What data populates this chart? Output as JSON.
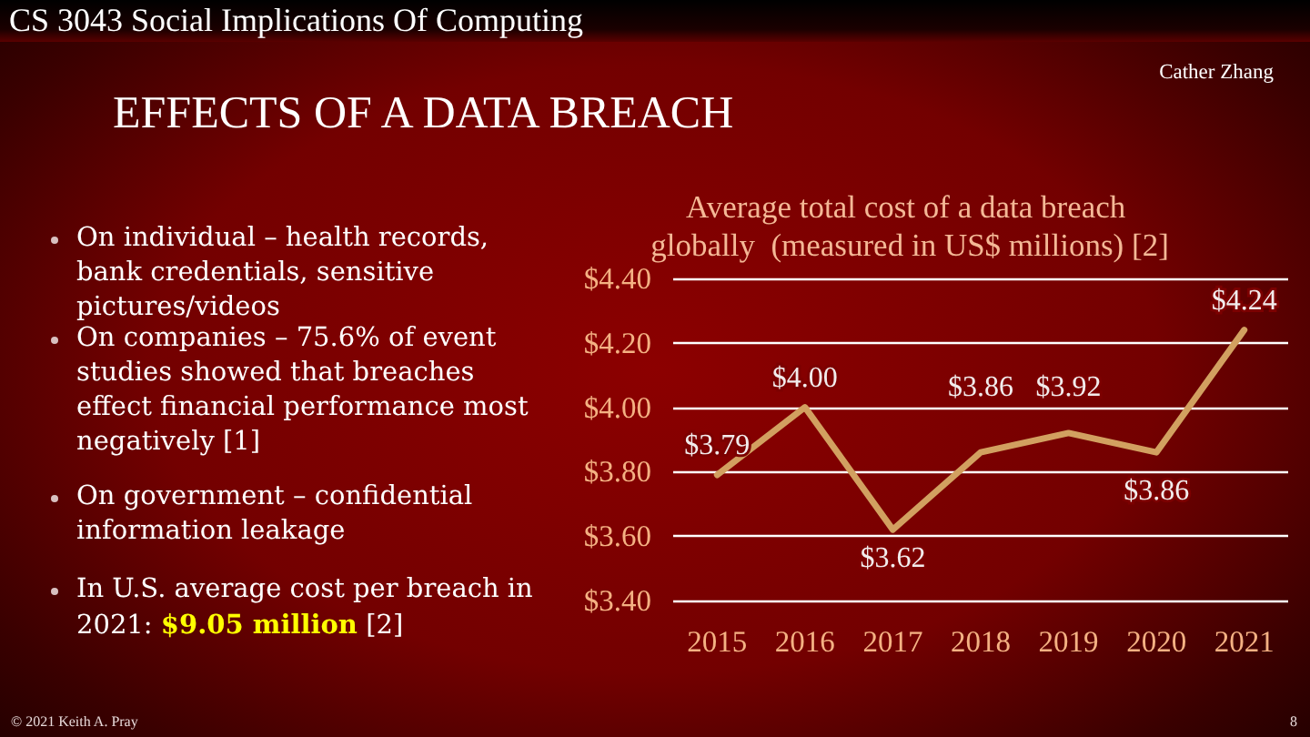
{
  "chart_data": {
    "type": "line",
    "title": "Average total cost of a data breach globally  (measured in US$ millions) [2]",
    "categories": [
      "2015",
      "2016",
      "2017",
      "2018",
      "2019",
      "2020",
      "2021"
    ],
    "values": [
      3.79,
      4.0,
      3.62,
      3.86,
      3.92,
      3.86,
      4.24
    ],
    "value_labels": [
      "$3.79",
      "$4.00",
      "$3.62",
      "$3.86",
      "$3.92",
      "$3.86",
      "$4.24"
    ],
    "color": "#d2a060",
    "ylim": [
      3.4,
      4.4
    ],
    "yticks": [
      {
        "value": 3.4,
        "label": "$3.40"
      },
      {
        "value": 3.6,
        "label": "$3.60"
      },
      {
        "value": 3.8,
        "label": "$3.80"
      },
      {
        "value": 4.0,
        "label": "$4.00"
      },
      {
        "value": 4.2,
        "label": "$4.20"
      },
      {
        "value": 4.4,
        "label": "$4.40"
      }
    ],
    "grid": "y",
    "marker": "none",
    "line_style": "solid",
    "annotations": [
      "CS 3043 Social Implications Of Computing",
      "Cather Zhang",
      "EFFECTS OF A DATA BREACH",
      "On individual – health records, bank credentials, sensitive pictures/videos",
      "On companies – 75.6% of event studies showed that breaches effect financial performance most negatively [1]",
      "On government – confidential information leakage",
      "In U.S. average cost per breach in 2021:",
      "$9.05 million",
      "[2]",
      "© 2021 Keith A. Pray",
      "8"
    ]
  }
}
